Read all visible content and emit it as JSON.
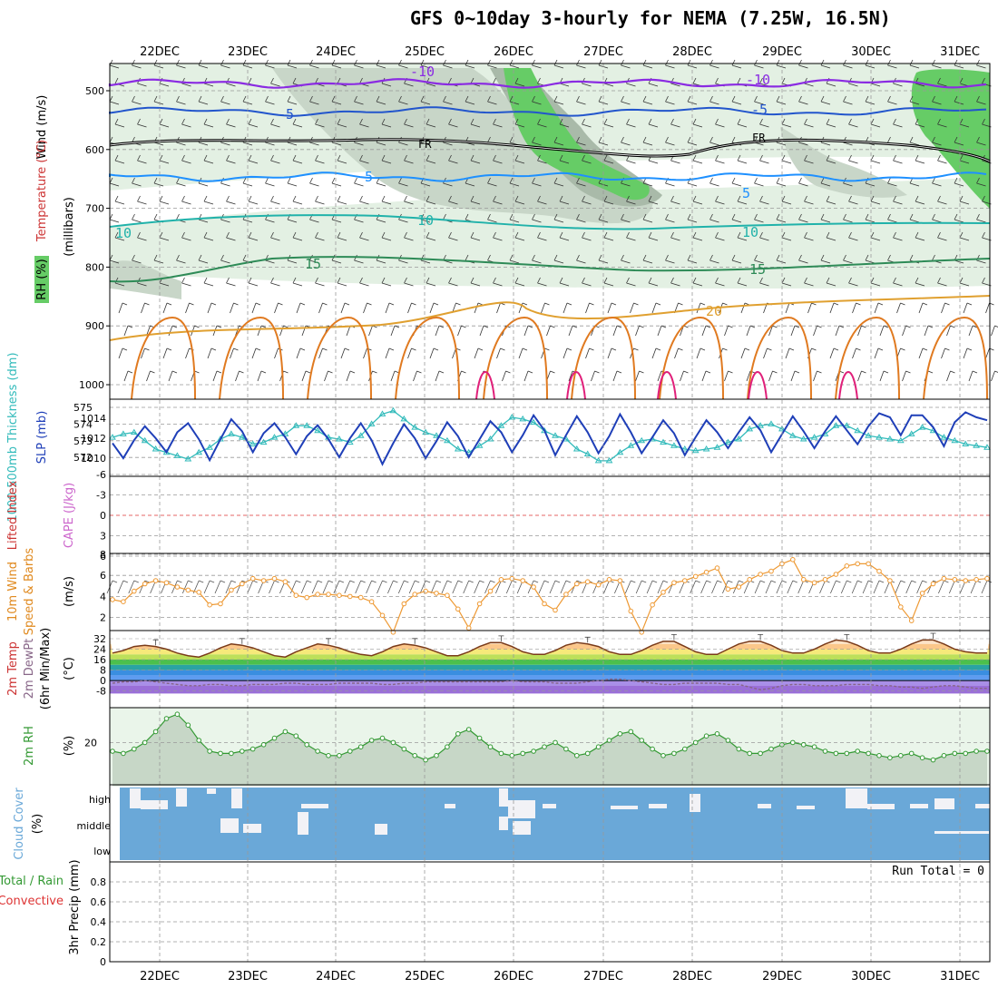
{
  "title": "GFS 0~10day 3-hourly for NEMA (7.25W, 16.5N)",
  "dates": [
    "22DEC",
    "23DEC",
    "24DEC",
    "25DEC",
    "26DEC",
    "27DEC",
    "28DEC",
    "29DEC",
    "30DEC",
    "31DEC"
  ],
  "colors": {
    "grid": "#999999",
    "rh_light": "#e3f0e3",
    "rh_mid": "#c8d6c8",
    "rh_dark": "#a9baa9",
    "rh_green": "#66cc66",
    "t_m10": "#8a2be2",
    "t_m5": "#2255cc",
    "t_fr": "#000000",
    "t_5": "#1e90ff",
    "t_10": "#20b2aa",
    "t_15": "#2e8b57",
    "t_20": "#e0a030",
    "t_25": "#e07a20",
    "t_30": "#e0207a",
    "slp": "#1f3fb8",
    "thick": "#33bbbb",
    "cape_zero": "#dd3333",
    "wind": "#ee9933",
    "temp_line": "#7a3b1a",
    "dew_line": "#886688",
    "rh_line": "#339933",
    "cloud": "#6aa8d8",
    "cloud_gap": "#f2f2f6"
  },
  "panels": {
    "upper": {
      "ylabel_wind": "Wind (m/s)",
      "ylabel_temp": "Temperature (°C)",
      "ylabel_rh": "RH (%)",
      "ylabel_unit": "(millibars)",
      "ticks": [
        "500",
        "600",
        "700",
        "800",
        "900",
        "1000"
      ],
      "contour_labels": {
        "m10": "-10",
        "m5": "-5",
        "fr": "FR",
        "p5": "5",
        "p10": "10",
        "p15": "15",
        "p20": "20"
      }
    },
    "slp": {
      "ylabel_thick": "1000-500mb Thickness (dm)",
      "ylabel_slp": "SLP (mb)",
      "ticks_left": [
        "575",
        "574",
        "573",
        "572"
      ],
      "ticks_right": [
        "1014",
        "1012",
        "1010"
      ]
    },
    "cape": {
      "ylabel_li": "Lifted Index",
      "ylabel_cape": "CAPE (J/kg)",
      "ticks": [
        "-6",
        "-3",
        "0",
        "3",
        "6"
      ]
    },
    "wind10": {
      "ylabel_a": "10m Wind",
      "ylabel_b": "Speed & Barbs",
      "ylabel_unit": "(m/s)",
      "ticks": [
        "8",
        "6",
        "4",
        "2"
      ]
    },
    "temp2m": {
      "ylabel_a": "2m Temp",
      "ylabel_b": "2m DewPt",
      "ylabel_c": "(6hr Min/Max)",
      "ylabel_unit": "(°C)",
      "ticks": [
        "32",
        "24",
        "16",
        "8",
        "0",
        "-8"
      ]
    },
    "rh2m": {
      "ylabel": "2m RH",
      "ylabel_unit": "(%)",
      "ticks": [
        "20"
      ]
    },
    "cloud": {
      "ylabel": "Cloud Cover",
      "ylabel_unit": "(%)",
      "levels": [
        "high",
        "middle",
        "low"
      ]
    },
    "precip": {
      "ylabel_a": "Total / Rain",
      "ylabel_b": "Convective",
      "ylabel_c": "3hr Precip (mm)",
      "ticks": [
        "0.8",
        "0.6",
        "0.4",
        "0.2",
        "0"
      ],
      "run_total": "Run Total = 0"
    }
  },
  "chart_data": {
    "type": "line",
    "x": "3-hourly steps from 21DEC 12Z to 31DEC 06Z",
    "slp_mb": [
      1011.5,
      1010.0,
      1011.8,
      1013.2,
      1012.0,
      1010.6,
      1012.6,
      1013.5,
      1011.9,
      1009.8,
      1011.9,
      1013.9,
      1012.7,
      1010.6,
      1012.5,
      1013.5,
      1012.1,
      1010.4,
      1012.2,
      1013.3,
      1011.9,
      1010.1,
      1012.0,
      1013.5,
      1011.8,
      1009.4,
      1011.5,
      1013.4,
      1012.0,
      1010.0,
      1011.7,
      1013.6,
      1012.2,
      1010.1,
      1011.9,
      1013.7,
      1012.6,
      1010.6,
      1012.3,
      1014.3,
      1012.8,
      1010.3,
      1012.3,
      1014.2,
      1012.6,
      1010.5,
      1012.2,
      1014.4,
      1012.6,
      1010.5,
      1012.1,
      1013.8,
      1012.5,
      1010.3,
      1012.1,
      1013.8,
      1012.6,
      1011.0,
      1012.6,
      1014.1,
      1012.8,
      1010.6,
      1012.4,
      1014.2,
      1012.7,
      1011.0,
      1012.7,
      1014.2,
      1012.8,
      1011.4,
      1013.2,
      1014.5,
      1014.1,
      1012.3,
      1014.3,
      1014.3,
      1013.1,
      1011.2,
      1013.6,
      1014.6,
      1014.1,
      1013.8
    ],
    "thickness_dm": [
      573.2,
      573.4,
      573.5,
      573.0,
      572.5,
      572.3,
      572.1,
      571.9,
      572.3,
      572.6,
      573.1,
      573.4,
      573.2,
      572.8,
      572.9,
      573.2,
      573.4,
      573.9,
      573.9,
      573.6,
      573.2,
      573.1,
      572.9,
      573.3,
      574.0,
      574.6,
      574.8,
      574.3,
      573.8,
      573.5,
      573.3,
      573.0,
      572.5,
      572.3,
      572.7,
      573.1,
      573.9,
      574.4,
      574.3,
      574.1,
      573.6,
      573.3,
      573.1,
      572.5,
      572.2,
      571.8,
      571.8,
      572.3,
      572.7,
      573.0,
      573.1,
      572.9,
      572.7,
      572.5,
      572.4,
      572.5,
      572.6,
      572.9,
      573.1,
      573.7,
      573.9,
      574.0,
      573.7,
      573.3,
      573.1,
      573.2,
      573.4,
      573.9,
      573.9,
      573.6,
      573.3,
      573.2,
      573.1,
      573.0,
      573.4,
      573.8,
      573.6,
      573.2,
      573.0,
      572.8,
      572.7,
      572.6
    ],
    "wind10_ms": [
      3.7,
      3.5,
      4.5,
      5.2,
      5.5,
      5.3,
      4.9,
      4.6,
      4.4,
      3.2,
      3.3,
      4.6,
      5.2,
      5.7,
      5.5,
      5.7,
      5.4,
      4.1,
      3.9,
      4.2,
      4.2,
      4.1,
      4.0,
      3.9,
      3.5,
      2.2,
      0.6,
      3.3,
      4.2,
      4.5,
      4.3,
      4.1,
      2.8,
      1.0,
      3.3,
      4.5,
      5.6,
      5.7,
      5.5,
      4.9,
      3.3,
      2.7,
      4.2,
      5.2,
      5.4,
      5.1,
      5.6,
      5.5,
      2.6,
      0.6,
      3.2,
      4.4,
      5.3,
      5.5,
      5.9,
      6.3,
      6.7,
      4.7,
      4.9,
      5.6,
      6.1,
      6.4,
      7.1,
      7.5,
      5.6,
      5.3,
      5.6,
      6.1,
      6.9,
      7.1,
      7.1,
      6.4,
      5.5,
      3.0,
      1.7,
      4.3,
      5.2,
      5.7,
      5.6,
      5.5,
      5.6,
      5.7
    ],
    "temp2m_c": [
      21,
      23,
      26,
      27,
      26,
      24,
      21,
      19,
      18,
      21,
      25,
      28,
      27,
      25,
      22,
      19,
      18,
      22,
      25,
      28,
      27,
      25,
      22,
      20,
      19,
      22,
      26,
      28,
      27,
      25,
      22,
      19,
      19,
      22,
      26,
      29,
      29,
      26,
      22,
      20,
      20,
      23,
      27,
      29,
      28,
      26,
      22,
      20,
      20,
      23,
      27,
      30,
      30,
      26,
      22,
      20,
      20,
      24,
      28,
      30,
      30,
      27,
      23,
      21,
      21,
      24,
      28,
      31,
      30,
      27,
      23,
      21,
      21,
      24,
      28,
      31,
      31,
      28,
      24,
      22,
      21,
      21
    ],
    "dew2m_c": [
      -2,
      -1,
      -1,
      0,
      -1,
      -2,
      -3,
      -4,
      -4,
      -3,
      -3,
      -4,
      -4,
      -3,
      -3,
      -3,
      -2,
      -2,
      -3,
      -3,
      -3,
      -2,
      -2,
      -2,
      -2,
      -3,
      -3,
      -2,
      -2,
      -1,
      -1,
      -1,
      -1,
      -1,
      -1,
      -1,
      -1,
      0,
      -1,
      -1,
      -1,
      -2,
      -2,
      -2,
      -1,
      0,
      1,
      1,
      0,
      -1,
      -2,
      -3,
      -3,
      -2,
      -2,
      -2,
      -2,
      -3,
      -3,
      -5,
      -7,
      -6,
      -4,
      -3,
      -3,
      -4,
      -4,
      -4,
      -3,
      -3,
      -3,
      -4,
      -4,
      -5,
      -5,
      -6,
      -5,
      -4,
      -4,
      -5,
      -6,
      -6
    ],
    "rh2m_pct": [
      16,
      15,
      17,
      20,
      25,
      31,
      33,
      28,
      21,
      16,
      15,
      15,
      16,
      17,
      19,
      22,
      25,
      23,
      19,
      16,
      14,
      14,
      16,
      18,
      21,
      22,
      20,
      17,
      14,
      12,
      14,
      18,
      24,
      26,
      22,
      18,
      15,
      14,
      15,
      16,
      18,
      20,
      17,
      14,
      15,
      18,
      21,
      24,
      25,
      21,
      17,
      14,
      15,
      17,
      20,
      23,
      24,
      21,
      17,
      15,
      15,
      17,
      19,
      20,
      19,
      18,
      16,
      15,
      15,
      16,
      15,
      14,
      13,
      14,
      15,
      13,
      12,
      14,
      15,
      15,
      16,
      16
    ]
  }
}
